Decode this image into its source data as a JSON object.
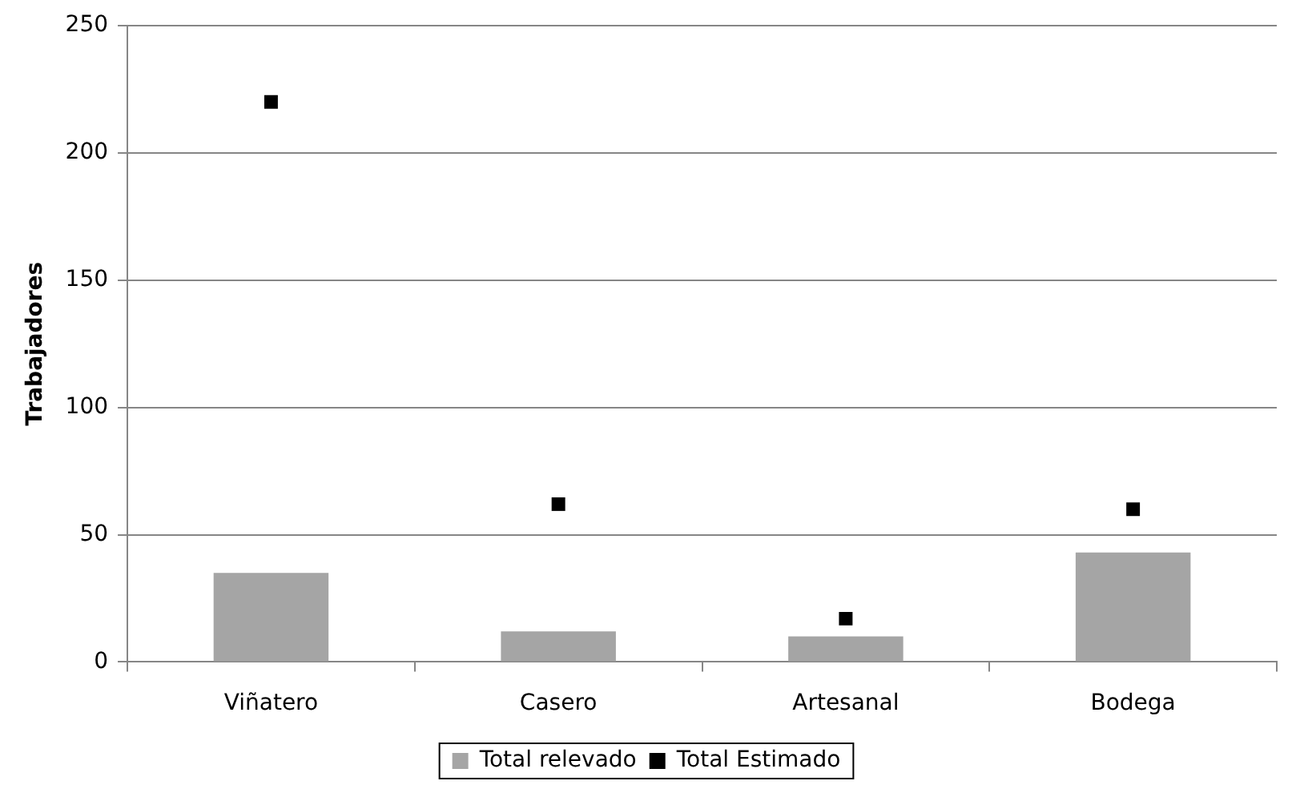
{
  "chart_data": {
    "type": "bar",
    "ylabel": "Trabajadores",
    "categories": [
      "Viñatero",
      "Casero",
      "Artesanal",
      "Bodega"
    ],
    "series": [
      {
        "name": "Total relevado",
        "color": "#a5a5a5",
        "values": [
          35,
          12,
          10,
          43
        ]
      },
      {
        "name": "Total Estimado",
        "type": "scatter",
        "marker": "square",
        "color": "#000000",
        "values": [
          220,
          62,
          17,
          60
        ]
      }
    ],
    "ylim": [
      0,
      250
    ],
    "yticks": [
      0,
      50,
      100,
      150,
      200,
      250
    ],
    "grid": "y",
    "legend": "bottom"
  }
}
